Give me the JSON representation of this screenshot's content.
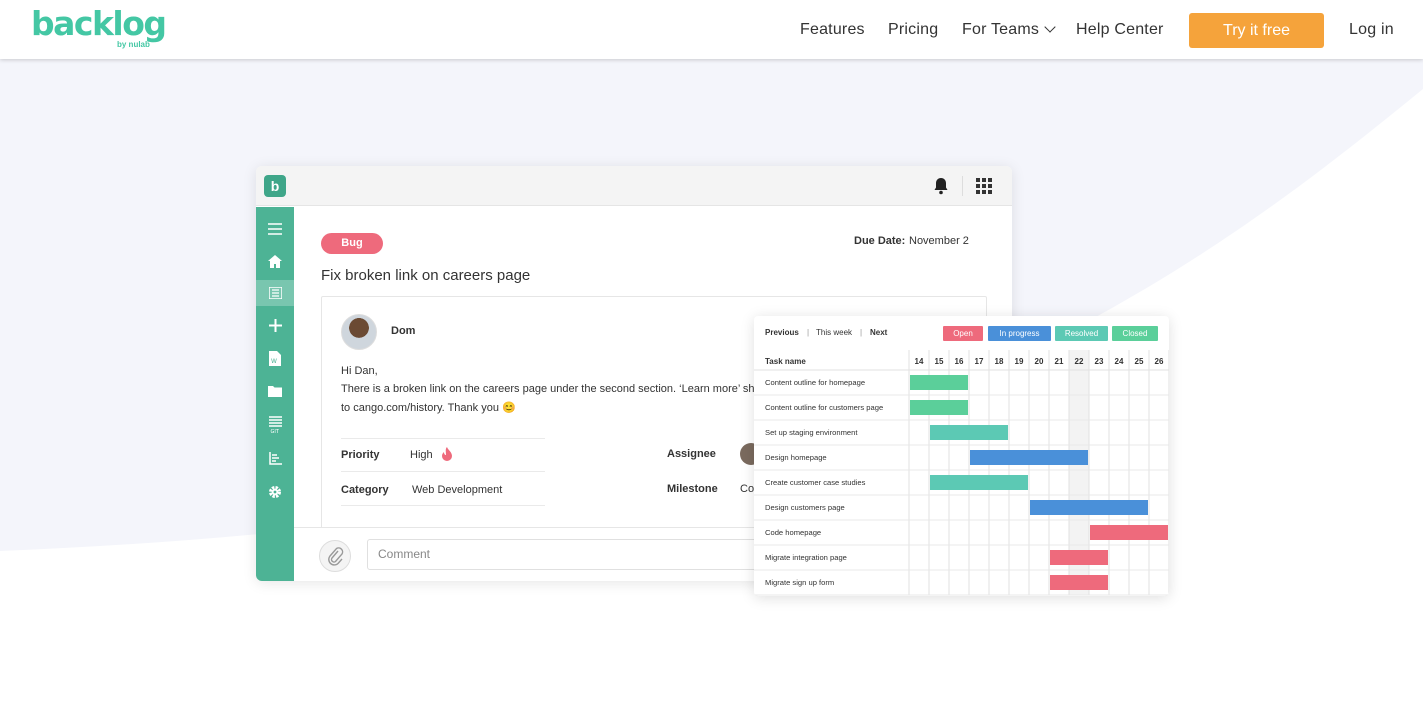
{
  "nav": {
    "logo": {
      "word": "backlog",
      "sub": "by nulab"
    },
    "links": [
      "Features",
      "Pricing",
      "For Teams",
      "Help Center"
    ],
    "cta": "Try it free",
    "login": "Log in"
  },
  "issue": {
    "tag": "Bug",
    "due_label": "Due Date:",
    "due_value": "November 2",
    "title": "Fix broken link on careers page",
    "author": "Dom",
    "greeting": "Hi Dan,",
    "body_line1": "There is a broken link on the careers page under the second section. ‘Learn more’ should",
    "body_line2": "to cango.com/history. Thank you 😊",
    "props": {
      "priority_label": "Priority",
      "priority_value": "High",
      "category_label": "Category",
      "category_value": "Web Development",
      "assignee_label": "Assignee",
      "milestone_label": "Milestone",
      "milestone_value": "Co"
    },
    "comment_placeholder": "Comment"
  },
  "gantt": {
    "nav": {
      "previous": "Previous",
      "this_week": "This week",
      "next": "Next",
      "sep": "|"
    },
    "legend": [
      {
        "label": "Open",
        "color": "#ee6a7c"
      },
      {
        "label": "In progress",
        "color": "#4a90d9"
      },
      {
        "label": "Resolved",
        "color": "#5cc9b4"
      },
      {
        "label": "Closed",
        "color": "#5bcf9a"
      }
    ],
    "header": "Task name",
    "days": [
      "14",
      "15",
      "16",
      "17",
      "18",
      "19",
      "20",
      "21",
      "22",
      "23",
      "24",
      "25",
      "26"
    ],
    "tasks": [
      {
        "name": "Content outline for homepage",
        "start": "14",
        "end": "16",
        "status": "Closed"
      },
      {
        "name": "Content outline for customers page",
        "start": "14",
        "end": "16",
        "status": "Closed"
      },
      {
        "name": "Set up staging environment",
        "start": "15",
        "end": "18",
        "status": "Resolved"
      },
      {
        "name": "Design homepage",
        "start": "17",
        "end": "22",
        "status": "In progress"
      },
      {
        "name": "Create customer case studies",
        "start": "15",
        "end": "19",
        "status": "Resolved"
      },
      {
        "name": "Design customers page",
        "start": "20",
        "end": "25",
        "status": "In progress"
      },
      {
        "name": "Code homepage",
        "start": "23",
        "end": "26",
        "status": "Open"
      },
      {
        "name": "Migrate integration page",
        "start": "21",
        "end": "23",
        "status": "Open"
      },
      {
        "name": "Migrate sign up form",
        "start": "21",
        "end": "23",
        "status": "Open"
      }
    ]
  },
  "sidebar_icons": [
    "menu-icon",
    "home-icon",
    "issues-icon",
    "add-icon",
    "wiki-icon",
    "files-icon",
    "git-icon",
    "gantt-icon",
    "settings-icon"
  ],
  "colors": {
    "brand": "#44c7a4",
    "sidebar": "#4db395",
    "cta": "#f5a33b",
    "bug": "#ee6a7c"
  }
}
